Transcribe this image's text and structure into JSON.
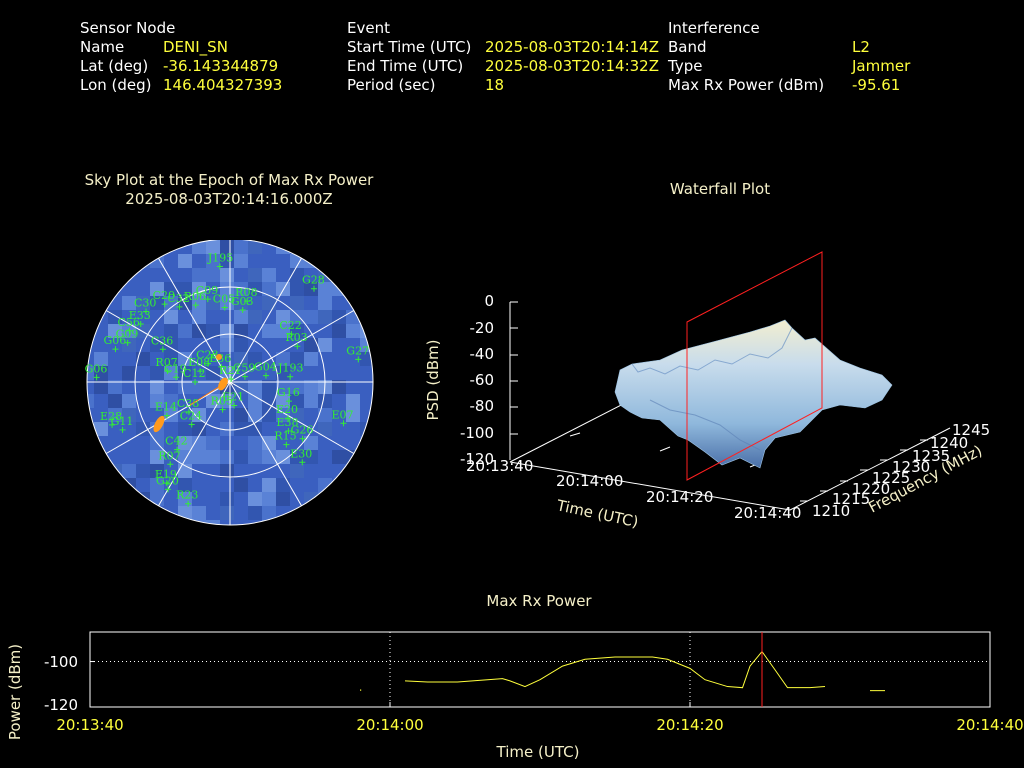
{
  "info": {
    "sensor": {
      "header": "Sensor Node",
      "name_label": "Name",
      "name": "DENI_SN",
      "lat_label": "Lat (deg)",
      "lat": "-36.143344879",
      "lon_label": "Lon (deg)",
      "lon": "146.404327393"
    },
    "event": {
      "header": "Event",
      "start_label": "Start Time (UTC)",
      "start": "2025-08-03T20:14:14Z",
      "end_label": "End Time (UTC)",
      "end": "2025-08-03T20:14:32Z",
      "period_label": "Period (sec)",
      "period": "18"
    },
    "interference": {
      "header": "Interference",
      "band_label": "Band",
      "band": "L2",
      "type_label": "Type",
      "type": "Jammer",
      "maxrx_label": "Max Rx Power (dBm)",
      "maxrx": "-95.61"
    }
  },
  "colors": {
    "text": "#ffffff",
    "value": "#ffff3c",
    "title": "#f5f0c8",
    "satellite": "#33ee33",
    "marker": "#ff9a1e",
    "cursor": "#ff2020",
    "sky_bg": "#3a5fc0",
    "waterfall": "#a8cce6"
  },
  "chart_data": [
    {
      "type": "scatter",
      "title": "Sky Plot at the Epoch of Max Rx Power",
      "subtitle": "2025-08-03T20:14:16.000Z",
      "satellites": [
        {
          "id": "J195",
          "az": -5,
          "el": 17
        },
        {
          "id": "G03",
          "az": 10,
          "el": 44
        },
        {
          "id": "G28",
          "az": 42,
          "el": 11
        },
        {
          "id": "R06",
          "az": -24,
          "el": 37
        },
        {
          "id": "C09",
          "az": -15,
          "el": 36
        },
        {
          "id": "C05",
          "az": -4,
          "el": 43
        },
        {
          "id": "R08",
          "az": 12,
          "el": 38
        },
        {
          "id": "C20",
          "az": -40,
          "el": 26
        },
        {
          "id": "C32",
          "az": -34,
          "el": 33
        },
        {
          "id": "C22",
          "az": 52,
          "el": 41
        },
        {
          "id": "R03",
          "az": 62,
          "el": 42
        },
        {
          "id": "G27",
          "az": 80,
          "el": 8
        },
        {
          "id": "C56",
          "az": -63,
          "el": 19
        },
        {
          "id": "E33",
          "az": -57,
          "el": 23
        },
        {
          "id": "C30",
          "az": -50,
          "el": 21
        },
        {
          "id": "G06",
          "az": -74,
          "el": 15
        },
        {
          "id": "G09",
          "az": -69,
          "el": 21
        },
        {
          "id": "G06",
          "az": -88,
          "el": 6
        },
        {
          "id": "C36",
          "az": -64,
          "el": 43
        },
        {
          "id": "C28",
          "az": -50,
          "el": 72
        },
        {
          "id": "E36",
          "az": -30,
          "el": 79
        },
        {
          "id": "R07",
          "az": -80,
          "el": 50
        },
        {
          "id": "C19",
          "az": -85,
          "el": 56
        },
        {
          "id": "E08",
          "az": -70,
          "el": 70
        },
        {
          "id": "C12",
          "az": -90,
          "el": 68
        },
        {
          "id": "R21",
          "az": 20,
          "el": 88
        },
        {
          "id": "C59",
          "az": 70,
          "el": 80
        },
        {
          "id": "G04",
          "az": 80,
          "el": 67
        },
        {
          "id": "J193",
          "az": 85,
          "el": 52
        },
        {
          "id": "E21",
          "az": 170,
          "el": 75
        },
        {
          "id": "R05",
          "az": -165,
          "el": 72
        },
        {
          "id": "G16",
          "az": 108,
          "el": 51
        },
        {
          "id": "E20",
          "az": 122,
          "el": 47
        },
        {
          "id": "E38",
          "az": 130,
          "el": 42
        },
        {
          "id": "R15",
          "az": 138,
          "el": 37
        },
        {
          "id": "G26",
          "az": 128,
          "el": 32
        },
        {
          "id": "E07",
          "az": 110,
          "el": 14
        },
        {
          "id": "E30",
          "az": 138,
          "el": 22
        },
        {
          "id": "E14",
          "az": -118,
          "el": 45
        },
        {
          "id": "C38",
          "az": -126,
          "el": 58
        },
        {
          "id": "C24",
          "az": -138,
          "el": 54
        },
        {
          "id": "C42",
          "az": -142,
          "el": 36
        },
        {
          "id": "E28",
          "az": -110,
          "el": 11
        },
        {
          "id": "G11",
          "az": -114,
          "el": 16
        },
        {
          "id": "R07",
          "az": -144,
          "el": 26
        },
        {
          "id": "E19",
          "az": -148,
          "el": 15
        },
        {
          "id": "G20",
          "az": -150,
          "el": 12
        },
        {
          "id": "R23",
          "az": -161,
          "el": 9
        }
      ]
    },
    {
      "type": "area",
      "title": "Waterfall Plot",
      "zlabel": "PSD (dBm)",
      "xlabel": "Time (UTC)",
      "ylabel": "Frequency (MHz)",
      "z_ticks": [
        "0",
        "-20",
        "-40",
        "-60",
        "-80",
        "-100",
        "-120"
      ],
      "time_ticks": [
        "20:13:40",
        "20:14:00",
        "20:14:20",
        "20:14:40"
      ],
      "freq_ticks": [
        "1210",
        "1215",
        "1220",
        "1225",
        "1230",
        "1235",
        "1240",
        "1245"
      ],
      "zlim": [
        -120,
        0
      ]
    },
    {
      "type": "line",
      "title": "Max Rx Power",
      "xlabel": "Time (UTC)",
      "ylabel": "Power (dBm)",
      "x_ticks": [
        "20:13:40",
        "20:14:00",
        "20:14:20",
        "20:14:40"
      ],
      "y_ticks": [
        "-100",
        "-120"
      ],
      "xlim": [
        0,
        60
      ],
      "ylim": [
        -120,
        -87
      ],
      "series": [
        {
          "segments": [
            [
              [
                18.0,
                -112.3
              ]
            ],
            [
              [
                21.0,
                -108.5
              ],
              [
                22.5,
                -109.0
              ],
              [
                24.5,
                -109.0
              ],
              [
                26.5,
                -108.0
              ],
              [
                27.5,
                -107.5
              ],
              [
                28.0,
                -108.5
              ],
              [
                29.0,
                -111.0
              ],
              [
                30.0,
                -108.0
              ],
              [
                31.5,
                -102.0
              ],
              [
                33.0,
                -99.0
              ],
              [
                35.0,
                -98.0
              ],
              [
                37.5,
                -98.0
              ],
              [
                38.5,
                -99.0
              ],
              [
                40.0,
                -103.0
              ],
              [
                41.0,
                -108.0
              ],
              [
                42.5,
                -111.0
              ],
              [
                43.5,
                -111.5
              ],
              [
                44.0,
                -102.0
              ],
              [
                44.8,
                -95.6
              ],
              [
                45.6,
                -103.0
              ],
              [
                46.5,
                -111.5
              ],
              [
                48.0,
                -111.5
              ],
              [
                49.0,
                -111.0
              ]
            ],
            [
              [
                52.0,
                -112.8
              ],
              [
                53.0,
                -112.8
              ]
            ]
          ]
        }
      ],
      "cursor_x": 44.8,
      "hline": -100
    }
  ]
}
